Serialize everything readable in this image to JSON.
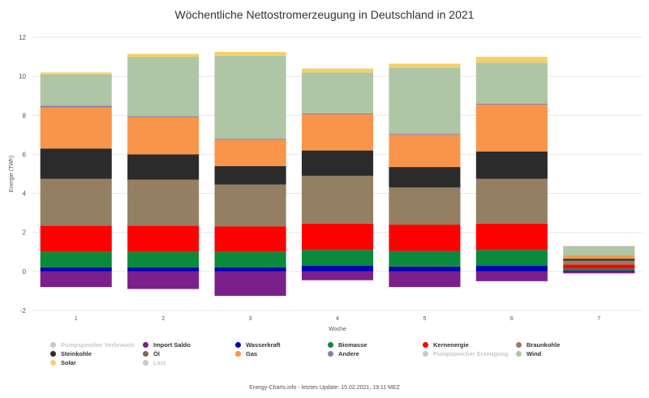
{
  "title": "Wöchentliche Nettostromerzeugung in Deutschland in 2021",
  "footer": "Energy-Charts.info - letztes Update: 15.02.2021, 19:11 MEZ",
  "chart_data": {
    "type": "bar",
    "stacked": true,
    "title": "Wöchentliche Nettostromerzeugung in Deutschland in 2021",
    "xlabel": "Woche",
    "ylabel": "Energie (TWh)",
    "ylim": [
      -2,
      12
    ],
    "yticks": [
      -2,
      0,
      2,
      4,
      6,
      8,
      10,
      12
    ],
    "grid": true,
    "legend_position": "bottom",
    "categories": [
      "1",
      "2",
      "3",
      "4",
      "5",
      "6",
      "7"
    ],
    "series": [
      {
        "name": "Pumpspeicher Verbrauch",
        "color": "#c8c8c8",
        "visible": false,
        "values": [
          null,
          null,
          null,
          null,
          null,
          null,
          null
        ]
      },
      {
        "name": "Import Saldo",
        "color": "#7b1f8c",
        "visible": true,
        "values": [
          -0.8,
          -0.9,
          -1.25,
          -0.45,
          -0.8,
          -0.5,
          -0.1
        ]
      },
      {
        "name": "Wasserkraft",
        "color": "#0000b4",
        "visible": true,
        "values": [
          0.2,
          0.2,
          0.2,
          0.3,
          0.25,
          0.3,
          0.05
        ]
      },
      {
        "name": "Biomasse",
        "color": "#0b8a3e",
        "visible": true,
        "values": [
          0.8,
          0.8,
          0.8,
          0.8,
          0.8,
          0.8,
          0.1
        ]
      },
      {
        "name": "Kernenergie",
        "color": "#ff0000",
        "visible": true,
        "values": [
          1.35,
          1.35,
          1.3,
          1.35,
          1.35,
          1.35,
          0.2
        ]
      },
      {
        "name": "Braunkohle",
        "color": "#957f63",
        "visible": true,
        "values": [
          2.4,
          2.35,
          2.15,
          2.45,
          1.9,
          2.3,
          0.2
        ]
      },
      {
        "name": "Steinkohle",
        "color": "#2b2b2b",
        "visible": true,
        "values": [
          1.55,
          1.3,
          0.95,
          1.3,
          1.05,
          1.4,
          0.1
        ]
      },
      {
        "name": "Öl",
        "color": "#7a6a50",
        "visible": true,
        "values": [
          0.0,
          0.0,
          0.0,
          0.0,
          0.0,
          0.0,
          0.0
        ]
      },
      {
        "name": "Gas",
        "color": "#f9954a",
        "visible": true,
        "values": [
          2.1,
          1.9,
          1.35,
          1.85,
          1.65,
          2.4,
          0.15
        ]
      },
      {
        "name": "Andere",
        "color": "#8f7ba6",
        "visible": true,
        "values": [
          0.1,
          0.05,
          0.05,
          0.05,
          0.05,
          0.05,
          0.02
        ]
      },
      {
        "name": "Pumpspeicher Erzeugung",
        "color": "#c8c8c8",
        "visible": false,
        "values": [
          null,
          null,
          null,
          null,
          null,
          null,
          null
        ]
      },
      {
        "name": "Wind",
        "color": "#aec6a5",
        "visible": true,
        "values": [
          1.6,
          3.05,
          4.25,
          2.1,
          3.4,
          2.1,
          0.48
        ]
      },
      {
        "name": "Solar",
        "color": "#f4d06b",
        "visible": true,
        "values": [
          0.1,
          0.15,
          0.2,
          0.2,
          0.2,
          0.3,
          0.0
        ]
      },
      {
        "name": "Last",
        "color": "#c8c8c8",
        "visible": false,
        "values": [
          null,
          null,
          null,
          null,
          null,
          null,
          null
        ]
      }
    ]
  },
  "legend": [
    {
      "name": "Pumpspeicher Verbrauch",
      "color": "#c8c8c8",
      "active": false
    },
    {
      "name": "Import Saldo",
      "color": "#7b1f8c",
      "active": true
    },
    {
      "name": "Wasserkraft",
      "color": "#0000b4",
      "active": true
    },
    {
      "name": "Biomasse",
      "color": "#0b8a3e",
      "active": true
    },
    {
      "name": "Kernenergie",
      "color": "#ff0000",
      "active": true
    },
    {
      "name": "Braunkohle",
      "color": "#957f63",
      "active": true
    },
    {
      "name": "Steinkohle",
      "color": "#2b2b2b",
      "active": true
    },
    {
      "name": "Öl",
      "color": "#7a6a50",
      "active": true
    },
    {
      "name": "Gas",
      "color": "#f9954a",
      "active": true
    },
    {
      "name": "Andere",
      "color": "#8f7ba6",
      "active": true
    },
    {
      "name": "Pumpspeicher Erzeugung",
      "color": "#c8c8c8",
      "active": false
    },
    {
      "name": "Wind",
      "color": "#aec6a5",
      "active": true
    },
    {
      "name": "Solar",
      "color": "#f4d06b",
      "active": true
    },
    {
      "name": "Last",
      "color": "#c8c8c8",
      "active": false
    }
  ]
}
